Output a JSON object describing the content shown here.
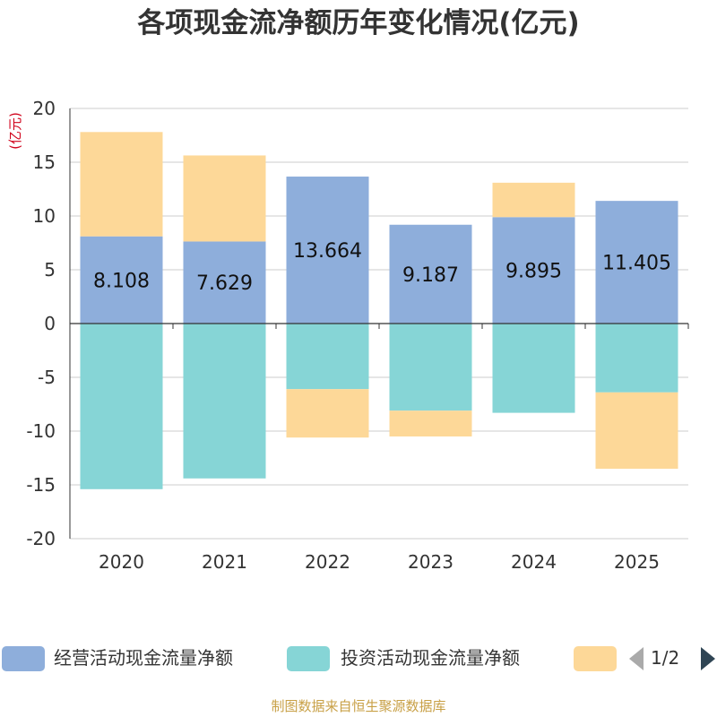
{
  "title": "各项现金流净额历年变化情况(亿元)",
  "source": "制图数据来自恒生聚源数据库",
  "colors": {
    "operating": "#8eaedb",
    "investing": "#86d5d6",
    "financing": "#fdd898",
    "axis": "#333333",
    "grid": "#cccccc",
    "unit": "#d0021b"
  },
  "legend": {
    "items": [
      {
        "label": "经营活动现金流量净额"
      },
      {
        "label": "投资活动现金流量净额"
      },
      {
        "label": ""
      }
    ],
    "pager": {
      "text": "1/2",
      "prev_icon": "triangle-left-icon",
      "next_icon": "triangle-right-icon"
    }
  },
  "chart_data": {
    "type": "bar",
    "stacked": true,
    "title": "各项现金流净额历年变化情况(亿元)",
    "ylabel": "(亿元)",
    "xlabel": "",
    "categories": [
      "2020",
      "2021",
      "2022",
      "2023",
      "2024",
      "2025"
    ],
    "ylim": [
      -20,
      20
    ],
    "yticks": [
      20,
      15,
      10,
      5,
      0,
      -5,
      -10,
      -15,
      -20
    ],
    "grid": true,
    "legend_position": "bottom",
    "series": [
      {
        "name": "经营活动现金流量净额",
        "values": [
          8.108,
          7.629,
          13.664,
          9.187,
          9.895,
          11.405
        ],
        "data_labels": [
          "8.108",
          "7.629",
          "13.664",
          "9.187",
          "9.895",
          "11.405"
        ]
      },
      {
        "name": "投资活动现金流量净额",
        "values": [
          -15.4,
          -14.4,
          -6.1,
          -8.1,
          -8.3,
          -6.4
        ]
      },
      {
        "values": [
          9.7,
          8.0,
          -4.5,
          -2.4,
          3.2,
          -7.1
        ]
      }
    ]
  }
}
